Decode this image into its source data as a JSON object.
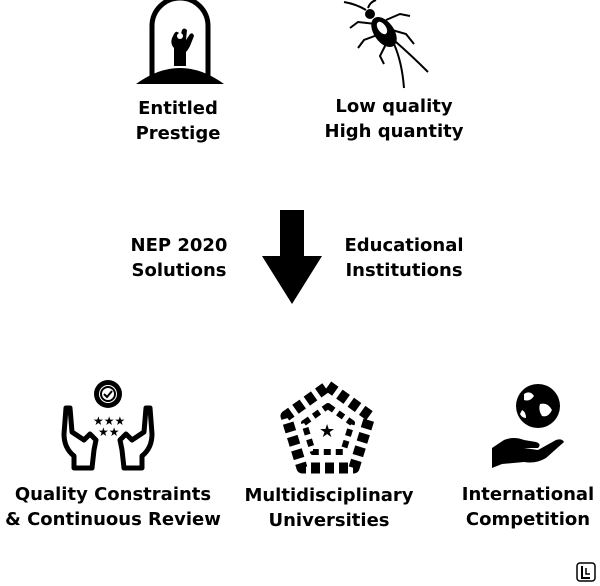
{
  "top": {
    "left": {
      "line1": "Entitled",
      "line2": "Prestige",
      "icon": "hand-in-bell-jar-icon"
    },
    "right": {
      "line1": "Low quality",
      "line2": "High quantity",
      "icon": "cockroach-icon"
    }
  },
  "middle": {
    "left": {
      "line1": "NEP 2020",
      "line2": "Solutions"
    },
    "right": {
      "line1": "Educational",
      "line2": "Institutions"
    },
    "arrow_icon": "down-arrow-icon"
  },
  "bottom": {
    "left": {
      "line1": "Quality Constraints",
      "line2": "& Continuous Review",
      "icon": "hands-with-stars-badge-icon"
    },
    "center": {
      "line1": "Multidisciplinary",
      "line2": "Universities",
      "icon": "pentagon-star-network-icon"
    },
    "right": {
      "line1": "International",
      "line2": "Competition",
      "icon": "hand-holding-globe-icon"
    }
  },
  "corner_logo": "brand-logo-icon",
  "colors": {
    "ink": "#000000",
    "background": "#ffffff"
  }
}
